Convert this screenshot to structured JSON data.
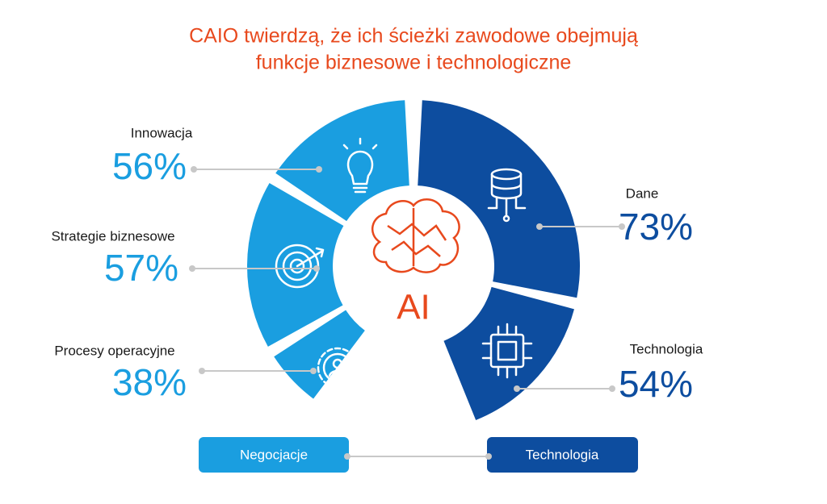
{
  "title": [
    "CAIO twierdzą, że ich ścieżki zawodowe obejmują",
    "funkcje biznesowe i technologiczne"
  ],
  "center_label": "AI",
  "segments": [
    {
      "label": "Innowacja",
      "value": "56%"
    },
    {
      "label": "Strategie biznesowe",
      "value": "57%"
    },
    {
      "label": "Procesy operacyjne",
      "value": "38%"
    },
    {
      "label": "Dane",
      "value": "73%"
    },
    {
      "label": "Technologia",
      "value": "54%"
    }
  ],
  "footer": {
    "left": "Negocjacje",
    "right": "Technologia"
  }
}
